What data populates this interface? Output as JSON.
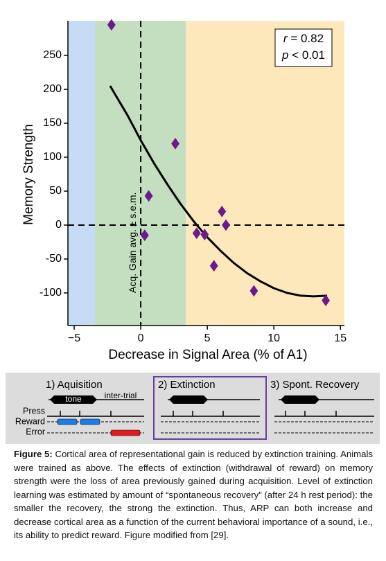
{
  "chart_data": {
    "type": "scatter",
    "xlabel": "Decrease in Signal Area (% of A1)",
    "ylabel": "Memory Strength",
    "x": [
      -2.2,
      2.6,
      0.6,
      0.3,
      4.2,
      4.8,
      6.1,
      6.4,
      5.5,
      8.5,
      13.9
    ],
    "values": [
      295,
      120,
      43,
      -15,
      -12,
      -14,
      20,
      0,
      -60,
      -97,
      -111
    ],
    "color": "#6b1a8c",
    "fit": {
      "color": "#000000",
      "x": [
        -2.3,
        -1,
        0,
        1,
        2,
        3,
        4,
        5,
        6,
        7,
        8,
        9,
        10,
        11,
        12,
        13,
        14
      ],
      "values": [
        205,
        162,
        125,
        91,
        60,
        31,
        5,
        -18,
        -38,
        -56,
        -71,
        -83,
        -93,
        -100,
        -104,
        -105,
        -104
      ]
    },
    "xlim": [
      -5.47,
      15.3
    ],
    "ylim": [
      -148,
      301
    ],
    "xticks": [
      {
        "value": -5,
        "label": "−5"
      },
      0,
      5,
      10,
      15
    ],
    "yticks": [
      -100,
      -50,
      0,
      50,
      100,
      150,
      200,
      250
    ],
    "region_bounds": [
      -3.44,
      3.39
    ],
    "region_colors": [
      "#c6dcf4",
      "#c4dfc0",
      "#fde8bb"
    ],
    "reference_x": 0,
    "reference_y": 0,
    "annotation": "Acq. Gain avg. ± s.e.m.",
    "stats": [
      {
        "symbol": "r",
        "text": " = 0.82"
      },
      {
        "symbol": "p",
        "text": " < 0.01"
      }
    ]
  },
  "diagram": {
    "panels": [
      "1) Aquisition",
      "2) Extinction",
      "3) Spont. Recovery"
    ],
    "tone": "tone",
    "intertrial": "inter-trial",
    "rows": [
      "Press",
      "Reward",
      "Error"
    ]
  },
  "caption": {
    "label": "Figure 5:",
    "text": " Cortical area of representational gain is reduced by extinction training. Animals were trained as above. The effects of extinction (withdrawal of reward) on memory strength were the loss of area previously gained during acquisition. Level of extinction learning was estimated by amount of “spontaneous recovery” (after 24 h rest period): the smaller the recovery, the strong the extinction. Thus, ARP can both increase and decrease cortical area as a function of the current behavioral importance of a sound, i.e., its ability to predict reward. Figure modified from [29]."
  }
}
